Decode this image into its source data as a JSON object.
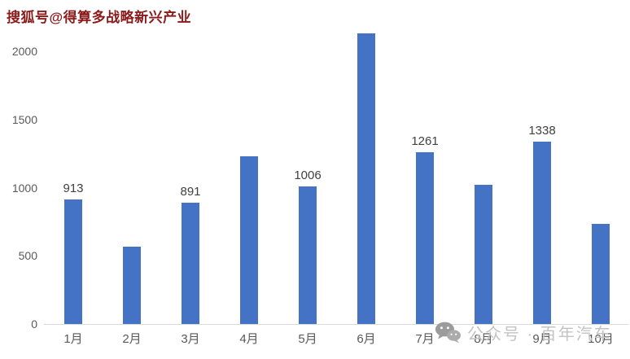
{
  "watermark_top": "搜狐号@得算多战略新兴产业",
  "watermark_bottom": {
    "icon": "wechat-icon",
    "text": "公众号 · 百年汽车"
  },
  "colors": {
    "bar": "#4472C4",
    "axis_text": "#595959",
    "data_label": "#404040",
    "axis_line": "#D9D9D9",
    "watermark_top_text": "#8B1A1A",
    "watermark_bottom_text": "#C3C3C3",
    "watermark_icon": "#A2A2A2",
    "background": "#FFFFFF"
  },
  "chart_data": {
    "type": "bar",
    "title": "",
    "xlabel": "",
    "ylabel": "",
    "categories": [
      "1月",
      "2月",
      "3月",
      "4月",
      "5月",
      "6月",
      "7月",
      "8月",
      "9月",
      "10月"
    ],
    "values": [
      913,
      565,
      891,
      1230,
      1006,
      2130,
      1261,
      1020,
      1338,
      735
    ],
    "data_labels": [
      "913",
      "",
      "891",
      "",
      "1006",
      "",
      "1261",
      "",
      "1338",
      ""
    ],
    "yticks": [
      0,
      500,
      1000,
      1500,
      2000
    ],
    "ylim": [
      0,
      2380
    ],
    "grid": false,
    "legend": null
  }
}
